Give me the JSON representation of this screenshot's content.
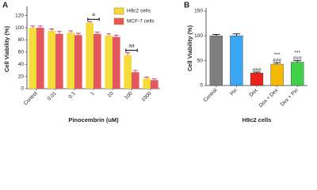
{
  "chart_data": [
    {
      "type": "grouped-bar",
      "panel": "A",
      "ylabel": "Cell Viability (%)",
      "xlabel": "Pinocembrin (uM)",
      "categories": [
        "Control",
        "0.01",
        "0.1",
        "1",
        "10",
        "100",
        "1000"
      ],
      "series": [
        {
          "name": "H9c2 cells",
          "color": "#f6dc3a",
          "values": [
            100,
            95,
            92,
            108,
            87,
            55,
            17
          ],
          "errors": [
            3,
            3,
            3,
            2,
            3,
            4,
            2
          ]
        },
        {
          "name": "MCF-7 cells",
          "color": "#e2585c",
          "values": [
            100,
            90,
            88,
            90,
            85,
            27,
            14
          ],
          "errors": [
            3,
            4,
            3,
            3,
            3,
            3,
            2
          ]
        }
      ],
      "error_color": "#c0307a",
      "ylim": [
        0,
        130
      ],
      "yticks": [
        0,
        20,
        40,
        60,
        80,
        100,
        120
      ],
      "annotations": [
        {
          "text": "a",
          "category": "1"
        },
        {
          "text": "aa",
          "category": "100"
        }
      ],
      "legend": "top-right"
    },
    {
      "type": "bar",
      "panel": "B",
      "ylabel": "Cell Viability (%)",
      "xlabel": "H9c2 cells",
      "categories": [
        "Control",
        "Pin",
        "Dox",
        "Dox + Dex",
        "Dox + Pin"
      ],
      "values": [
        100,
        100,
        25,
        43,
        47
      ],
      "errors": [
        3,
        4,
        2,
        3,
        3
      ],
      "colors": [
        "#7f7f7f",
        "#3aa6f4",
        "#e8231c",
        "#f6b800",
        "#40d04a"
      ],
      "error_color": "#000000",
      "ylim": [
        0,
        150
      ],
      "yticks": [
        0,
        50,
        100,
        150
      ],
      "annotations": [
        {
          "text": "###",
          "category": "Dox"
        },
        {
          "text": "###",
          "category": "Dox + Dex"
        },
        {
          "text": "***",
          "category": "Dox + Dex"
        },
        {
          "text": "###",
          "category": "Dox + Pin"
        },
        {
          "text": "***",
          "category": "Dox + Pin"
        }
      ]
    }
  ]
}
